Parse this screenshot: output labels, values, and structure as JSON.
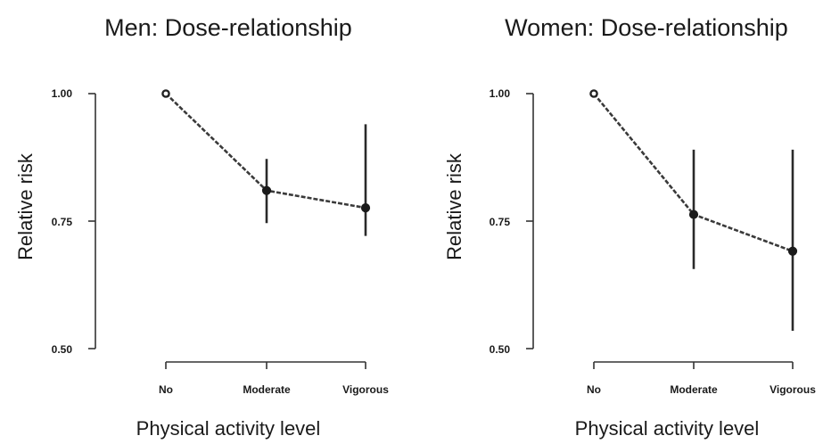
{
  "chart_data": [
    {
      "type": "line",
      "title": "Men: Dose-relationship",
      "xlabel": "Physical activity level",
      "ylabel": "Relative risk",
      "categories": [
        "No",
        "Moderate",
        "Vigorous"
      ],
      "ylim": [
        0.5,
        1.0
      ],
      "yticks": [
        "1.00",
        "0.75",
        "0.50"
      ],
      "ytick_values": [
        1.0,
        0.75,
        0.5
      ],
      "grid": false,
      "series": [
        {
          "values": [
            1.0,
            0.81,
            0.776
          ],
          "lower": [
            null,
            0.746,
            0.721
          ],
          "upper": [
            null,
            0.872,
            0.94
          ],
          "reference_marker": "open"
        }
      ]
    },
    {
      "type": "line",
      "title": "Women: Dose-relationship",
      "xlabel": "Physical activity level",
      "ylabel": "Relative risk",
      "categories": [
        "No",
        "Moderate",
        "Vigorous"
      ],
      "ylim": [
        0.5,
        1.0
      ],
      "yticks": [
        "1.00",
        "0.75",
        "0.50"
      ],
      "ytick_values": [
        1.0,
        0.75,
        0.5
      ],
      "grid": false,
      "series": [
        {
          "values": [
            1.0,
            0.763,
            0.691
          ],
          "lower": [
            null,
            0.656,
            0.535
          ],
          "upper": [
            null,
            0.89,
            0.89
          ],
          "reference_marker": "open"
        }
      ]
    }
  ]
}
